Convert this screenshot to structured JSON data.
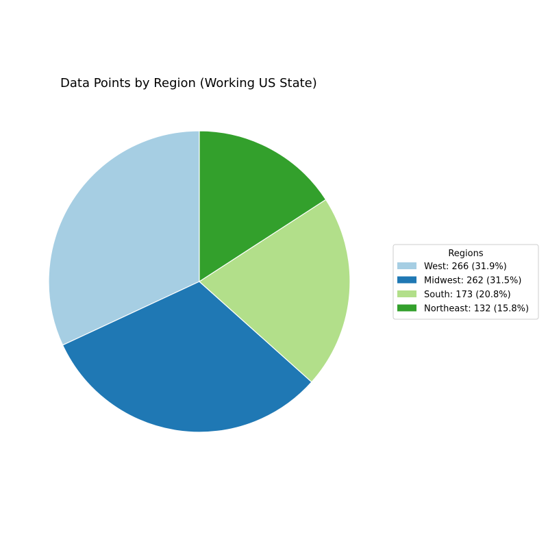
{
  "chart_data": {
    "type": "pie",
    "title": "Data Points by Region (Working US State)",
    "legend": {
      "title": "Regions",
      "placement": "right"
    },
    "slices": [
      {
        "label": "West",
        "value": 266,
        "percent": 31.9,
        "color": "#a6cee3",
        "legend_text": "West: 266 (31.9%)"
      },
      {
        "label": "Midwest",
        "value": 262,
        "percent": 31.5,
        "color": "#1f78b4",
        "legend_text": "Midwest: 262 (31.5%)"
      },
      {
        "label": "South",
        "value": 173,
        "percent": 20.8,
        "color": "#b2df8a",
        "legend_text": "South: 173 (20.8%)"
      },
      {
        "label": "Northeast",
        "value": 132,
        "percent": 15.8,
        "color": "#33a02c",
        "legend_text": "Northeast: 132 (15.8%)"
      }
    ],
    "start_angle": "top",
    "direction": "counterclockwise",
    "edge_color": "#ffffff"
  }
}
